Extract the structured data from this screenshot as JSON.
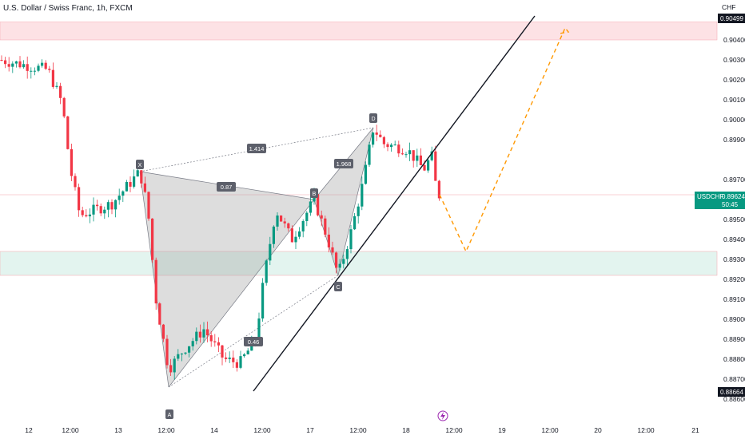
{
  "header": {
    "title": "U.S. Dollar / Swiss Franc, 1h, FXCM",
    "currency": "CHF"
  },
  "price_tags": {
    "top": "0.90499",
    "current_symbol": "USDCHF",
    "current_price": "0.89624",
    "countdown": "50:45",
    "bottom": "0.88664"
  },
  "event_icon": "lightning-icon",
  "colors": {
    "up": "#089981",
    "down": "#f23645",
    "pattern_fill": "#9e9e9e",
    "resistance_zone": "#fde2e5",
    "support_zone": "#e3f4ef",
    "projection": "#ff9800"
  },
  "chart_data": {
    "type": "candlestick",
    "title": "U.S. Dollar / Swiss Franc, 1h, FXCM",
    "y_axis": {
      "min": 0.886,
      "max": 0.9055,
      "ticks": [
        "0.90400",
        "0.90300",
        "0.90200",
        "0.90100",
        "0.90000",
        "0.89900",
        "0.89700",
        "0.89500",
        "0.89400",
        "0.89300",
        "0.89200",
        "0.89100",
        "0.89000",
        "0.88900",
        "0.88800",
        "0.88700",
        "0.88600"
      ]
    },
    "x_axis": {
      "ticks": [
        "12",
        "12:00",
        "13",
        "12:00",
        "14",
        "12:00",
        "17",
        "12:00",
        "18",
        "12:00",
        "19",
        "12:00",
        "20",
        "12:00",
        "21"
      ]
    },
    "harmonic_pattern": {
      "points": [
        {
          "label": "X",
          "price": 0.8974
        },
        {
          "label": "A",
          "price": 0.8866
        },
        {
          "label": "B",
          "price": 0.896
        },
        {
          "label": "C",
          "price": 0.8922
        },
        {
          "label": "D",
          "price": 0.8996
        }
      ],
      "ratios": [
        "1.414",
        "0.87",
        "1.968",
        "0.46"
      ]
    },
    "zones": {
      "resistance": [
        0.904,
        0.9049
      ],
      "support": [
        0.8922,
        0.8934
      ]
    },
    "current_price": 0.89624,
    "projection": [
      0.89624,
      0.8934,
      0.9046
    ],
    "trendline": "ascending support from 0.8868 through 0.8922"
  }
}
